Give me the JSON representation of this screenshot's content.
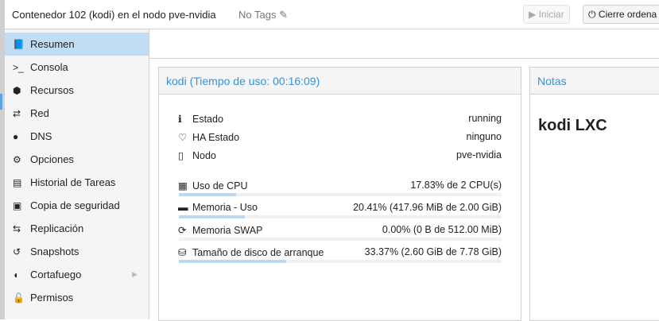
{
  "header": {
    "title": "Contenedor 102 (kodi) en el nodo pve-nvidia",
    "tags": "No Tags",
    "start_label": "Iniciar",
    "shutdown_label": "Cierre ordena"
  },
  "sidebar": {
    "items": [
      {
        "label": "Resumen",
        "icon": "book-icon",
        "g": "📘"
      },
      {
        "label": "Consola",
        "icon": "terminal-icon",
        "g": ">_"
      },
      {
        "label": "Recursos",
        "icon": "cube-icon",
        "g": "⬢"
      },
      {
        "label": "Red",
        "icon": "exchange-icon",
        "g": "⇄"
      },
      {
        "label": "DNS",
        "icon": "globe-icon",
        "g": "●"
      },
      {
        "label": "Opciones",
        "icon": "gear-icon",
        "g": "⚙"
      },
      {
        "label": "Historial de Tareas",
        "icon": "list-icon",
        "g": "▤"
      },
      {
        "label": "Copia de seguridad",
        "icon": "floppy-icon",
        "g": "▣"
      },
      {
        "label": "Replicación",
        "icon": "retweet-icon",
        "g": "⇆"
      },
      {
        "label": "Snapshots",
        "icon": "history-icon",
        "g": "↺"
      },
      {
        "label": "Cortafuego",
        "icon": "shield-icon",
        "g": "◖"
      },
      {
        "label": "Permisos",
        "icon": "unlock-icon",
        "g": "🔓"
      }
    ]
  },
  "summary": {
    "title": "kodi (Tiempo de uso: 00:16:09)",
    "info": [
      {
        "label": "Estado",
        "value": "running",
        "g": "ℹ"
      },
      {
        "label": "HA Estado",
        "value": "ninguno",
        "g": "♡"
      },
      {
        "label": "Nodo",
        "value": "pve-nvidia",
        "g": "▯"
      }
    ],
    "usage": [
      {
        "label": "Uso de CPU",
        "value": "17.83% de 2 CPU(s)",
        "percent": 17.83,
        "g": "▦"
      },
      {
        "label": "Memoria - Uso",
        "value": "20.41% (417.96 MiB de 2.00 GiB)",
        "percent": 20.41,
        "g": "▬"
      },
      {
        "label": "Memoria SWAP",
        "value": "0.00% (0 B de 512.00 MiB)",
        "percent": 0,
        "g": "⟳"
      },
      {
        "label": "Tamaño de disco de arranque",
        "value": "33.37% (2.60 GiB de 7.78 GiB)",
        "percent": 33.37,
        "g": "⛁"
      }
    ]
  },
  "notes": {
    "title": "Notas",
    "content": "kodi LXC"
  },
  "colors": {
    "accent": "#3892d4",
    "selected": "#c2ddf2",
    "bar": "#bcd9ef"
  }
}
